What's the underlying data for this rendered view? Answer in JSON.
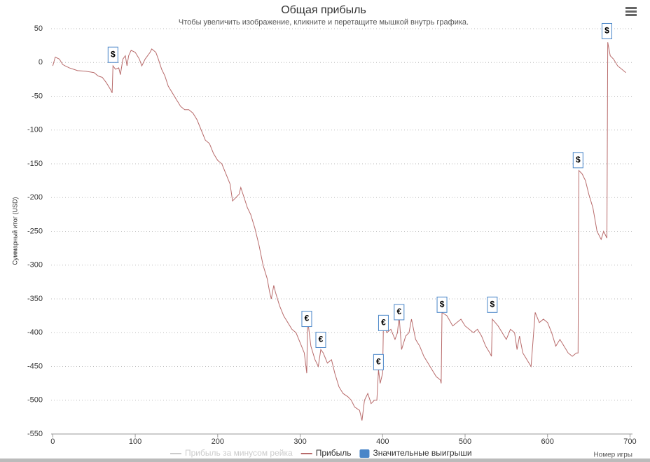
{
  "chart_data": {
    "type": "line",
    "title": "Общая прибыль",
    "subtitle": "Чтобы увеличить изображение, кликните и перетащите мышкой внутрь графика.",
    "y_label": "Суммарный итог (USD)",
    "x_label": "Номер игры",
    "xlim": [
      -2,
      703
    ],
    "ylim": [
      -550,
      50
    ],
    "xticks": [
      0,
      100,
      200,
      300,
      400,
      500,
      600,
      700
    ],
    "yticks": [
      -550,
      -500,
      -450,
      -400,
      -350,
      -300,
      -250,
      -200,
      -150,
      -100,
      -50,
      0,
      50
    ],
    "grid": true,
    "legend": "bottom",
    "x": [
      0,
      3,
      8,
      12,
      15,
      20,
      25,
      30,
      40,
      50,
      55,
      60,
      65,
      70,
      72,
      73,
      76,
      80,
      82,
      85,
      88,
      90,
      92,
      95,
      100,
      105,
      108,
      112,
      118,
      120,
      125,
      128,
      132,
      136,
      140,
      145,
      150,
      155,
      160,
      165,
      170,
      175,
      180,
      185,
      190,
      195,
      200,
      205,
      210,
      215,
      218,
      222,
      226,
      228,
      232,
      236,
      240,
      245,
      250,
      255,
      260,
      263,
      265,
      268,
      270,
      275,
      280,
      285,
      290,
      295,
      300,
      305,
      308,
      309,
      313,
      318,
      322,
      325,
      328,
      333,
      338,
      342,
      347,
      352,
      358,
      362,
      366,
      372,
      375,
      378,
      382,
      386,
      390,
      393,
      395,
      397,
      400,
      401,
      405,
      410,
      415,
      418,
      420,
      423,
      428,
      432,
      435,
      440,
      445,
      450,
      455,
      460,
      465,
      470,
      471,
      472,
      478,
      485,
      490,
      495,
      500,
      505,
      510,
      515,
      520,
      525,
      530,
      532,
      533,
      540,
      545,
      550,
      555,
      560,
      563,
      566,
      570,
      575,
      580,
      585,
      590,
      595,
      600,
      605,
      610,
      615,
      620,
      625,
      630,
      635,
      637,
      638,
      642,
      646,
      650,
      655,
      660,
      665,
      668,
      672,
      673,
      676,
      680,
      685,
      690,
      695
    ],
    "series": [
      {
        "name": "Прибыль за минусом рейка",
        "color": "#cccccc",
        "visible": false
      },
      {
        "name": "Прибыль",
        "color": "#b86b6b",
        "visible": true,
        "values": [
          -5,
          8,
          5,
          -3,
          -5,
          -8,
          -10,
          -12,
          -13,
          -15,
          -20,
          -22,
          -30,
          -40,
          -45,
          -5,
          -10,
          -8,
          -18,
          5,
          10,
          -5,
          10,
          18,
          15,
          5,
          -5,
          5,
          15,
          20,
          15,
          5,
          -10,
          -20,
          -35,
          -45,
          -55,
          -65,
          -70,
          -70,
          -75,
          -85,
          -100,
          -115,
          -120,
          -135,
          -145,
          -150,
          -165,
          -180,
          -205,
          -200,
          -195,
          -185,
          -200,
          -215,
          -225,
          -245,
          -270,
          -300,
          -320,
          -340,
          -350,
          -330,
          -340,
          -360,
          -375,
          -385,
          -395,
          -400,
          -415,
          -430,
          -460,
          -380,
          -420,
          -440,
          -450,
          -425,
          -430,
          -445,
          -440,
          -460,
          -480,
          -490,
          -495,
          -500,
          -510,
          -515,
          -530,
          -500,
          -490,
          -505,
          -500,
          -500,
          -455,
          -475,
          -460,
          -385,
          -400,
          -395,
          -410,
          -400,
          -375,
          -425,
          -405,
          -400,
          -380,
          -410,
          -420,
          -435,
          -445,
          -455,
          -465,
          -470,
          -475,
          -370,
          -375,
          -390,
          -385,
          -380,
          -390,
          -395,
          -400,
          -395,
          -405,
          -420,
          -430,
          -435,
          -380,
          -390,
          -400,
          -410,
          -395,
          -400,
          -425,
          -405,
          -430,
          -440,
          -450,
          -370,
          -385,
          -380,
          -385,
          -400,
          -420,
          -410,
          -420,
          -430,
          -435,
          -430,
          -430,
          -160,
          -165,
          -175,
          -195,
          -215,
          -250,
          -262,
          -250,
          -260,
          30,
          10,
          5,
          -5,
          -10,
          -15
        ]
      }
    ],
    "flags": {
      "name": "Значительные выигрыши",
      "color": "#4a86c8",
      "x": [
        73,
        308,
        325,
        395,
        401,
        420,
        472,
        533,
        637,
        672
      ],
      "values": [
        0,
        -391,
        -422,
        -455,
        -397,
        -381,
        -370,
        -370,
        -156,
        35
      ],
      "labels": [
        "$",
        "€",
        "€",
        "€",
        "€",
        "€",
        "$",
        "$",
        "$",
        "$"
      ]
    }
  }
}
